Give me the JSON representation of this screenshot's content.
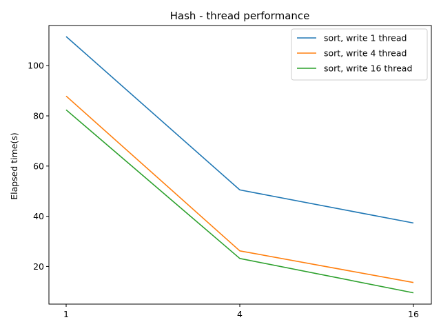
{
  "chart_data": {
    "type": "line",
    "title": "Hash - thread performance",
    "xlabel": "",
    "ylabel": "Elapsed time(s)",
    "categories": [
      "1",
      "4",
      "16"
    ],
    "ylim": [
      5,
      116
    ],
    "yticks": [
      20,
      40,
      60,
      80,
      100
    ],
    "legend_position": "top-right",
    "grid": false,
    "series": [
      {
        "name": "sort, write 1 thread",
        "color": "#1f77b4",
        "values": [
          111.6,
          50.5,
          37.3
        ]
      },
      {
        "name": "sort, write 4 thread",
        "color": "#ff7f0e",
        "values": [
          87.9,
          26.2,
          13.6
        ]
      },
      {
        "name": "sort, write 16 thread",
        "color": "#2ca02c",
        "values": [
          82.4,
          23.2,
          9.5
        ]
      }
    ]
  }
}
